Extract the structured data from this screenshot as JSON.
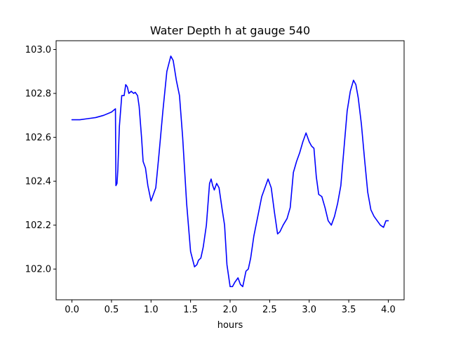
{
  "chart_data": {
    "type": "line",
    "title": "Water Depth h at gauge 540",
    "xlabel": "hours",
    "ylabel": "",
    "xlim": [
      -0.2,
      4.2
    ],
    "ylim": [
      101.86,
      103.04
    ],
    "xticks": [
      0.0,
      0.5,
      1.0,
      1.5,
      2.0,
      2.5,
      3.0,
      3.5,
      4.0
    ],
    "xtick_labels": [
      "0.0",
      "0.5",
      "1.0",
      "1.5",
      "2.0",
      "2.5",
      "3.0",
      "3.5",
      "4.0"
    ],
    "yticks": [
      102.0,
      102.2,
      102.4,
      102.6,
      102.8,
      103.0
    ],
    "ytick_labels": [
      "102.0",
      "102.2",
      "102.4",
      "102.6",
      "102.8",
      "103.0"
    ],
    "grid": false,
    "legend": "none",
    "series": [
      {
        "color": "#0000ff",
        "x": [
          0.0,
          0.1,
          0.2,
          0.3,
          0.4,
          0.5,
          0.55,
          0.556,
          0.57,
          0.58,
          0.6,
          0.63,
          0.66,
          0.68,
          0.7,
          0.72,
          0.75,
          0.78,
          0.8,
          0.83,
          0.85,
          0.88,
          0.9,
          0.93,
          0.96,
          1.0,
          1.03,
          1.06,
          1.1,
          1.15,
          1.2,
          1.25,
          1.28,
          1.32,
          1.36,
          1.4,
          1.45,
          1.5,
          1.55,
          1.58,
          1.6,
          1.63,
          1.66,
          1.7,
          1.74,
          1.76,
          1.78,
          1.8,
          1.83,
          1.86,
          1.9,
          1.93,
          1.96,
          2.0,
          2.03,
          2.06,
          2.1,
          2.13,
          2.16,
          2.2,
          2.23,
          2.26,
          2.3,
          2.35,
          2.4,
          2.45,
          2.48,
          2.52,
          2.56,
          2.6,
          2.63,
          2.67,
          2.72,
          2.76,
          2.8,
          2.84,
          2.88,
          2.92,
          2.96,
          3.0,
          3.03,
          3.06,
          3.09,
          3.12,
          3.16,
          3.2,
          3.24,
          3.28,
          3.32,
          3.36,
          3.4,
          3.44,
          3.48,
          3.52,
          3.56,
          3.59,
          3.62,
          3.66,
          3.7,
          3.74,
          3.78,
          3.82,
          3.86,
          3.9,
          3.94,
          3.97,
          4.0
        ],
        "y": [
          102.68,
          102.68,
          102.685,
          102.69,
          102.7,
          102.715,
          102.73,
          102.38,
          102.39,
          102.45,
          102.65,
          102.79,
          102.79,
          102.84,
          102.83,
          102.8,
          102.81,
          102.8,
          102.805,
          102.79,
          102.74,
          102.6,
          102.49,
          102.46,
          102.38,
          102.31,
          102.34,
          102.37,
          102.52,
          102.72,
          102.9,
          102.97,
          102.95,
          102.86,
          102.79,
          102.6,
          102.3,
          102.08,
          102.01,
          102.02,
          102.04,
          102.05,
          102.1,
          102.2,
          102.39,
          102.41,
          102.38,
          102.36,
          102.39,
          102.37,
          102.27,
          102.2,
          102.02,
          101.92,
          101.92,
          101.94,
          101.96,
          101.93,
          101.92,
          101.99,
          102.0,
          102.05,
          102.15,
          102.24,
          102.33,
          102.38,
          102.41,
          102.37,
          102.26,
          102.16,
          102.17,
          102.2,
          102.23,
          102.28,
          102.44,
          102.49,
          102.53,
          102.58,
          102.62,
          102.58,
          102.56,
          102.55,
          102.42,
          102.34,
          102.33,
          102.28,
          102.22,
          102.2,
          102.24,
          102.3,
          102.38,
          102.55,
          102.72,
          102.81,
          102.86,
          102.84,
          102.78,
          102.66,
          102.5,
          102.35,
          102.27,
          102.24,
          102.22,
          102.2,
          102.19,
          102.22,
          102.22
        ]
      }
    ]
  }
}
